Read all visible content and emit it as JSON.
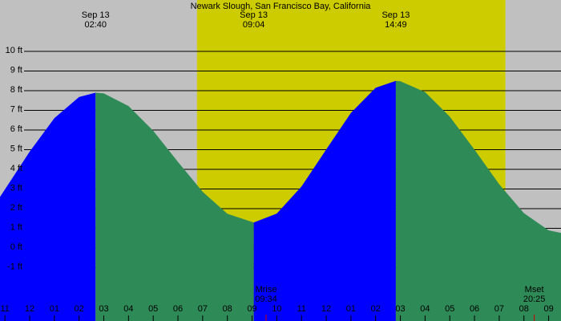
{
  "chart_data": {
    "type": "tide",
    "title": "Newark Slough, San Francisco Bay, California",
    "x": [
      -1.2,
      -1,
      0,
      1,
      2,
      2.667,
      3,
      4,
      5,
      6,
      7,
      8,
      9.067,
      10,
      11,
      12,
      13,
      14,
      14.817,
      15,
      16,
      17,
      18,
      19,
      20,
      21,
      21.5
    ],
    "values": [
      2.6,
      2.98,
      4.9,
      6.6,
      7.68,
      7.9,
      7.86,
      7.22,
      5.96,
      4.38,
      2.86,
      1.74,
      1.3,
      1.75,
      3.13,
      5.01,
      6.87,
      8.15,
      8.5,
      8.48,
      7.93,
      6.68,
      5.0,
      3.24,
      1.77,
      0.9,
      0.77
    ],
    "rising_color": "#0000ff",
    "falling_color": "#2e8b57",
    "night_color": "#c0c0c0",
    "day_color": "#cccc00",
    "daylight": [
      6.77,
      19.25
    ],
    "xlim": [
      -1.2,
      21.5
    ],
    "ylim": [
      -3.71,
      12.61
    ],
    "yticks": [
      {
        "value": 10,
        "label": "10 ft"
      },
      {
        "value": 9,
        "label": "9 ft"
      },
      {
        "value": 8,
        "label": "8 ft"
      },
      {
        "value": 7,
        "label": "7 ft"
      },
      {
        "value": 6,
        "label": "6 ft"
      },
      {
        "value": 5,
        "label": "5 ft"
      },
      {
        "value": 4,
        "label": "4 ft"
      },
      {
        "value": 3,
        "label": "3 ft"
      },
      {
        "value": 2,
        "label": "2 ft"
      },
      {
        "value": 1,
        "label": "1 ft"
      },
      {
        "value": 0,
        "label": "0 ft"
      },
      {
        "value": -1,
        "label": "-1 ft"
      }
    ],
    "xticks": [
      {
        "value": -1,
        "label": "11"
      },
      {
        "value": 0,
        "label": "12"
      },
      {
        "value": 1,
        "label": "01"
      },
      {
        "value": 2,
        "label": "02"
      },
      {
        "value": 3,
        "label": "03"
      },
      {
        "value": 4,
        "label": "04"
      },
      {
        "value": 5,
        "label": "05"
      },
      {
        "value": 6,
        "label": "06"
      },
      {
        "value": 7,
        "label": "07"
      },
      {
        "value": 8,
        "label": "08"
      },
      {
        "value": 9,
        "label": "09"
      },
      {
        "value": 10,
        "label": "10"
      },
      {
        "value": 11,
        "label": "11"
      },
      {
        "value": 12,
        "label": "12"
      },
      {
        "value": 13,
        "label": "01"
      },
      {
        "value": 14,
        "label": "02"
      },
      {
        "value": 15,
        "label": "03"
      },
      {
        "value": 16,
        "label": "04"
      },
      {
        "value": 17,
        "label": "05"
      },
      {
        "value": 18,
        "label": "06"
      },
      {
        "value": 19,
        "label": "07"
      },
      {
        "value": 20,
        "label": "08"
      },
      {
        "value": 21,
        "label": "09"
      }
    ],
    "extremes": [
      {
        "date": "Sep 13",
        "time": "02:40",
        "x": 2.667
      },
      {
        "date": "Sep 13",
        "time": "09:04",
        "x": 9.067
      },
      {
        "date": "Sep 13",
        "time": "14:49",
        "x": 14.817
      }
    ],
    "moon": [
      {
        "label": "Mrise",
        "time": "09:34",
        "x": 9.567
      },
      {
        "label": "Mset",
        "time": "20:25",
        "x": 20.417
      }
    ],
    "moon_color": "#cc0000"
  }
}
